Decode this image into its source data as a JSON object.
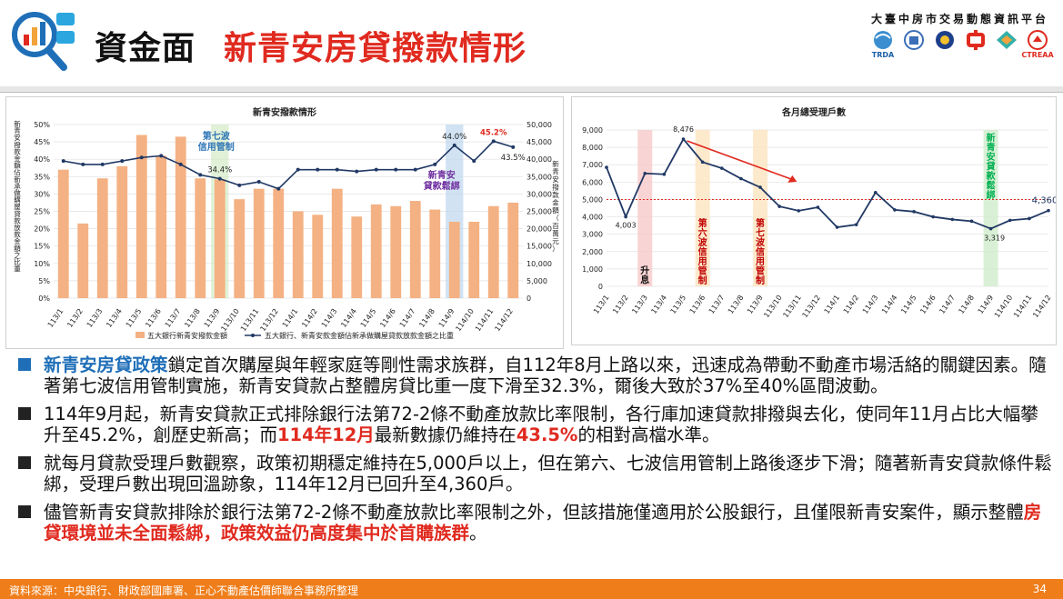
{
  "header": {
    "title_main": "資金面",
    "title_sub": "新青安房貸撥款情形",
    "platform": "大臺中房市交易動態資訊平台",
    "partners": [
      {
        "icon": "globe-logo-icon",
        "caption": "TRDA"
      },
      {
        "icon": "building-logo-icon",
        "caption": ""
      },
      {
        "icon": "emblem-logo-icon",
        "caption": ""
      },
      {
        "icon": "zhong-logo-icon",
        "caption": ""
      },
      {
        "icon": "diamond-logo-icon",
        "caption": ""
      },
      {
        "icon": "ctreaa-logo-icon",
        "caption": "CTREAA"
      }
    ]
  },
  "chart_data": [
    {
      "type": "bar",
      "title": "新青安撥款情形",
      "categories": [
        "113/1",
        "113/2",
        "113/3",
        "113/4",
        "113/5",
        "113/6",
        "113/7",
        "113/8",
        "113/9",
        "113/10",
        "113/11",
        "113/12",
        "114/1",
        "114/2",
        "114/3",
        "114/4",
        "114/5",
        "114/6",
        "114/7",
        "114/8",
        "114/9",
        "114/10",
        "114/11",
        "114/12"
      ],
      "series": [
        {
          "name": "五大銀行新青安撥款金額",
          "type": "bar",
          "axis": "right",
          "color": "#f4b183",
          "values": [
            37000,
            21500,
            34500,
            38000,
            47000,
            41000,
            46500,
            34500,
            34200,
            28500,
            31500,
            31500,
            25000,
            24000,
            31500,
            23500,
            27000,
            26500,
            28000,
            25500,
            22000,
            22000,
            26500,
            27500
          ]
        },
        {
          "name": "五大銀行、新青安款金額佔新承做購屋貸款放款金額之比重",
          "type": "line",
          "axis": "left",
          "color": "#203864",
          "values": [
            39.5,
            38.5,
            38.5,
            39.5,
            40.5,
            41.0,
            38.5,
            35.5,
            34.4,
            32.5,
            33.5,
            31.5,
            37.0,
            37.0,
            37.0,
            36.5,
            37.0,
            37.0,
            37.0,
            38.5,
            44.0,
            39.5,
            45.2,
            43.5
          ]
        }
      ],
      "data_labels": {
        "113/9": "34.4%",
        "114/9": "44.0%",
        "114/11": "45.2%",
        "114/12": "43.5%"
      },
      "ylim_left": [
        0,
        50
      ],
      "ylim_right": [
        0,
        50000
      ],
      "left_ticks": [
        "0%",
        "5%",
        "10%",
        "15%",
        "20%",
        "25%",
        "30%",
        "35%",
        "40%",
        "45%",
        "50%"
      ],
      "right_ticks": [
        "0",
        "5,000",
        "10,000",
        "15,000",
        "20,000",
        "25,000",
        "30,000",
        "35,000",
        "40,000",
        "45,000",
        "50,000"
      ],
      "ylabel_left": "新青安撥款金額佔新承做購屋貸款放款金額之比重",
      "ylabel_right": "新青安撥款金額（百萬元）",
      "annotations": [
        {
          "text": "第七波信用管制",
          "at": "113/9",
          "color": "#2e75b6"
        },
        {
          "text": "新青安貸款鬆綁",
          "at": "114/9",
          "color": "#7030a0"
        }
      ],
      "grid": true,
      "legend": "bottom"
    },
    {
      "type": "line",
      "title": "各月總受理戶數",
      "categories": [
        "113/1",
        "113/2",
        "113/3",
        "113/4",
        "113/5",
        "113/6",
        "113/7",
        "113/8",
        "113/9",
        "113/10",
        "113/11",
        "113/12",
        "114/1",
        "114/2",
        "114/3",
        "114/4",
        "114/5",
        "114/6",
        "114/7",
        "114/8",
        "114/9",
        "114/10",
        "114/11",
        "114/12"
      ],
      "values": [
        6850,
        4003,
        6500,
        6450,
        8476,
        7150,
        6800,
        6200,
        5700,
        4600,
        4350,
        4550,
        3400,
        3550,
        5400,
        4400,
        4300,
        4000,
        3850,
        3750,
        3319,
        3800,
        3900,
        4360
      ],
      "data_labels": {
        "113/2": "4,003",
        "113/5": "8,476",
        "114/9": "3,319",
        "114/12": "4,360"
      },
      "ylim": [
        0,
        9000
      ],
      "ticks": [
        "0",
        "1,000",
        "2,000",
        "3,000",
        "4,000",
        "5,000",
        "6,000",
        "7,000",
        "8,000",
        "9,000"
      ],
      "reference_line": 5000,
      "annotations": [
        {
          "text": "升息",
          "at": "113/3",
          "color": "#111111"
        },
        {
          "text": "第六波信用管制",
          "at": "113/6",
          "color": "#c00000"
        },
        {
          "text": "第七波信用管制",
          "at": "113/9",
          "color": "#c00000"
        },
        {
          "text": "新青安貸款鬆綁",
          "at": "114/9",
          "color": "#00b050"
        }
      ],
      "grid": true
    }
  ],
  "bullets": [
    {
      "parts": [
        {
          "text": "新青安房貸政策",
          "style": "blue"
        },
        {
          "text": "鎖定首次購屋與年輕家庭等剛性需求族群，自112年8月上路以來，迅速成為帶動不動產市場活絡的關鍵因素。隨著第七波信用管制實施，新青安貸款占整體房貸比重一度下滑至32.3%，爾後大致於37%至40%區間波動。",
          "style": ""
        }
      ]
    },
    {
      "parts": [
        {
          "text": "114年9月起，新青安貸款正式排除銀行法第72-2條不動產放款比率限制，各行庫加速貸款排撥與去化，使同年11月占比大幅攀升至45.2%，創歷史新高；而",
          "style": ""
        },
        {
          "text": "114年12月",
          "style": "red"
        },
        {
          "text": "最新數據仍維持在",
          "style": ""
        },
        {
          "text": "43.5%",
          "style": "red"
        },
        {
          "text": "的相對高檔水準。",
          "style": ""
        }
      ]
    },
    {
      "parts": [
        {
          "text": "就每月貸款受理戶數觀察，政策初期穩定維持在5,000戶以上，但在第六、七波信用管制上路後逐步下滑；隨著新青安貸款條件鬆綁，受理戶數出現回溫跡象，114年12月已回升至4,360戶。",
          "style": ""
        }
      ]
    },
    {
      "parts": [
        {
          "text": "儘管新青安貸款排除於銀行法第72-2條不動產放款比率限制之外，但該措施僅適用於公股銀行，且僅限新青安案件，顯示整體",
          "style": ""
        },
        {
          "text": "房貸環境並未全面鬆綁，政策效益仍高度集中於首購族群",
          "style": "red"
        },
        {
          "text": "。",
          "style": ""
        }
      ]
    }
  ],
  "footer": {
    "source": "資料來源：中央銀行、財政部國庫署、正心不動產估價師聯合事務所整理",
    "page": "34"
  },
  "colors": {
    "accent_red": "#e02a1f",
    "accent_blue": "#1f6fb8",
    "footer_orange": "#ef7d1a",
    "bar": "#f4b183",
    "line": "#203864"
  }
}
